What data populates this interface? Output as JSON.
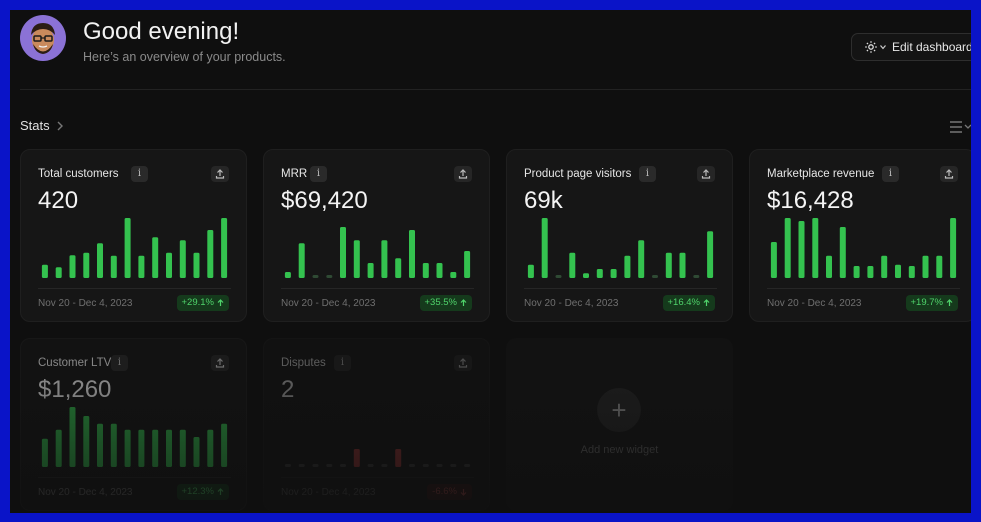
{
  "header": {
    "greeting": "Good evening!",
    "subtitle": "Here’s an overview of your products.",
    "edit_label": "Edit dashboard"
  },
  "section": {
    "label": "Stats"
  },
  "colors": {
    "bar": "#34c24f",
    "bar_neg": "#d04040",
    "bar_flat": "#2f4a34"
  },
  "cards": [
    {
      "title": "Total customers",
      "value": "420",
      "range": "Nov 20 - Dec 4, 2023",
      "change": "+29.1%",
      "trend": "up",
      "bars": [
        0.22,
        0.18,
        0.38,
        0.42,
        0.58,
        0.37,
        1.0,
        0.37,
        0.68,
        0.42,
        0.63,
        0.42,
        0.8,
        1.0
      ]
    },
    {
      "title": "MRR",
      "value": "$69,420",
      "range": "Nov 20 - Dec 4, 2023",
      "change": "+35.5%",
      "trend": "up",
      "bars": [
        0.1,
        0.58,
        0.05,
        0.05,
        0.85,
        0.63,
        0.25,
        0.63,
        0.33,
        0.8,
        0.25,
        0.25,
        0.1,
        0.45
      ]
    },
    {
      "title": "Product page visitors",
      "value": "69k",
      "range": "Nov 20 - Dec 4, 2023",
      "change": "+16.4%",
      "trend": "up",
      "bars": [
        0.22,
        1.0,
        0.05,
        0.42,
        0.08,
        0.15,
        0.15,
        0.37,
        0.63,
        0.05,
        0.42,
        0.42,
        0.05,
        0.78
      ]
    },
    {
      "title": "Marketplace revenue",
      "value": "$16,428",
      "range": "Nov 20 - Dec 4, 2023",
      "change": "+19.7%",
      "trend": "up",
      "bars": [
        0.6,
        1.0,
        0.95,
        1.0,
        0.37,
        0.85,
        0.2,
        0.2,
        0.37,
        0.22,
        0.2,
        0.37,
        0.37,
        1.0
      ]
    },
    {
      "title": "Customer LTV",
      "value": "$1,260",
      "range": "Nov 20 - Dec 4, 2023",
      "change": "+12.3%",
      "trend": "up",
      "bars": [
        0.47,
        0.62,
        1.0,
        0.85,
        0.72,
        0.72,
        0.62,
        0.62,
        0.62,
        0.62,
        0.62,
        0.5,
        0.62,
        0.72
      ]
    },
    {
      "title": "Disputes",
      "value": "2",
      "range": "Nov 20 - Dec 4, 2023",
      "change": "-6.6%",
      "trend": "down",
      "bars": [
        0.05,
        0.05,
        0.05,
        0.05,
        0.05,
        0.3,
        0.05,
        0.05,
        0.3,
        0.05,
        0.05,
        0.05,
        0.05,
        0.05
      ]
    }
  ],
  "add_widget": {
    "label": "Add new widget"
  }
}
